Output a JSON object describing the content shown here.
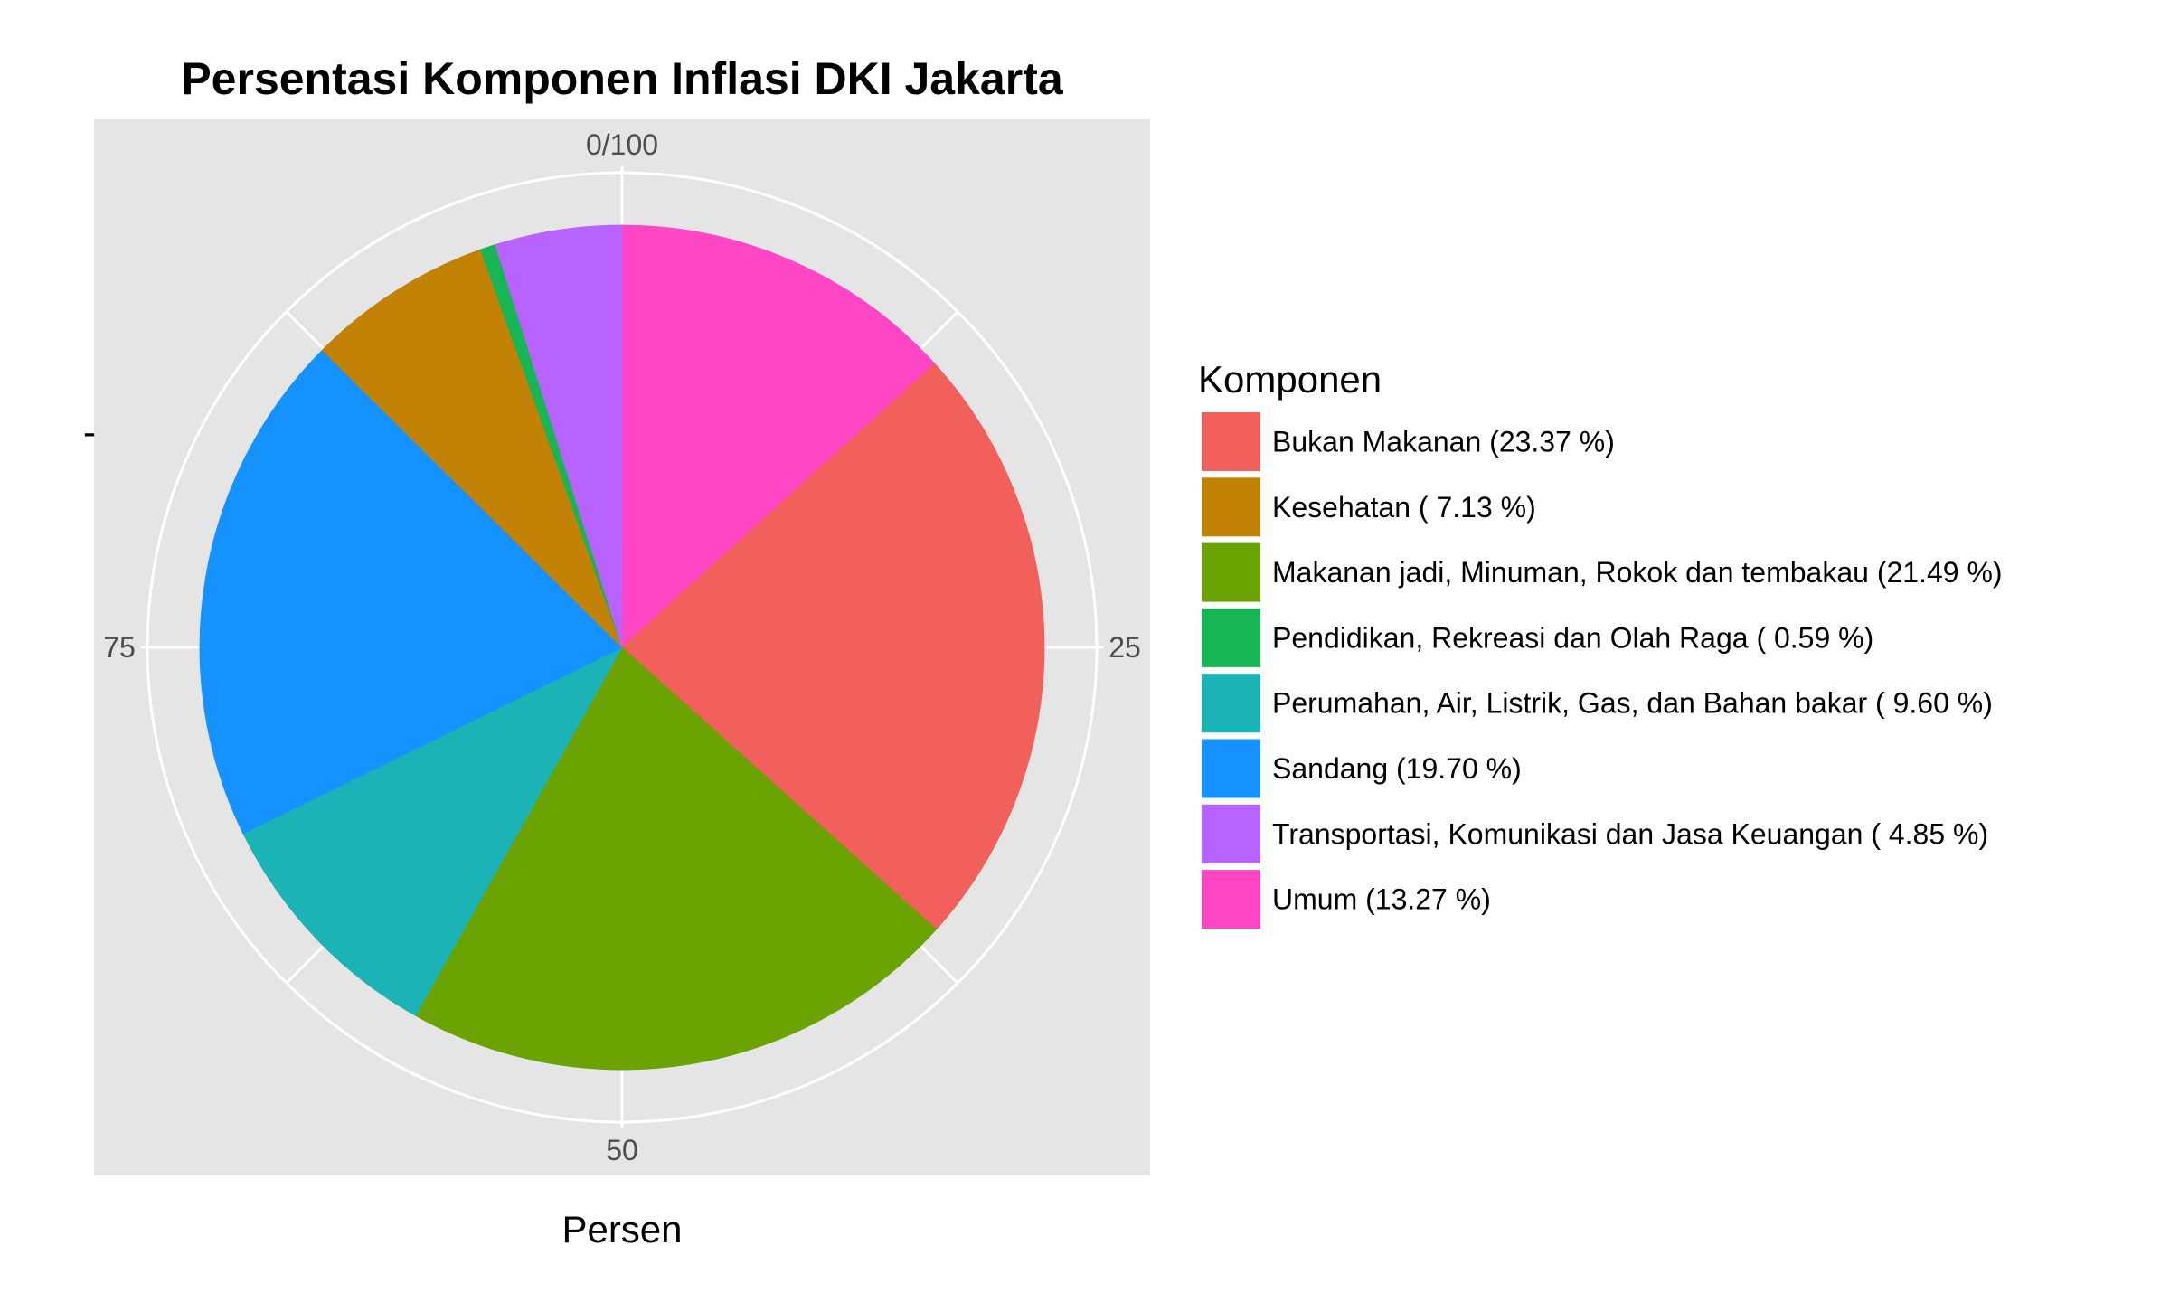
{
  "chart_data": {
    "type": "pie",
    "title": "Persentasi Komponen Inflasi DKI Jakarta",
    "xlabel": "Persen",
    "ylabel": "-",
    "legend_title": "Komponen",
    "legend_position": "right",
    "grid": true,
    "axis_range": [
      0,
      100
    ],
    "direction": "clockwise-from-top",
    "ticks": [
      {
        "value": 0,
        "label": "0/100"
      },
      {
        "value": 25,
        "label": "25"
      },
      {
        "value": 50,
        "label": "50"
      },
      {
        "value": 75,
        "label": "75"
      }
    ],
    "slices": [
      {
        "label": "Umum (13.27 %)",
        "value": 13.27,
        "color": "#FF46C5"
      },
      {
        "label": "Bukan Makanan (23.37 %)",
        "value": 23.37,
        "color": "#F2605C"
      },
      {
        "label": "Makanan jadi, Minuman, Rokok dan tembakau (21.49 %)",
        "value": 21.49,
        "color": "#6BA302"
      },
      {
        "label": "Perumahan, Air, Listrik, Gas, dan Bahan bakar ( 9.60 %)",
        "value": 9.6,
        "color": "#1CB3B6"
      },
      {
        "label": "Sandang (19.70 %)",
        "value": 19.7,
        "color": "#1592FF"
      },
      {
        "label": "Kesehatan ( 7.13 %)",
        "value": 7.13,
        "color": "#C18206"
      },
      {
        "label": "Pendidikan, Rekreasi dan Olah Raga ( 0.59 %)",
        "value": 0.59,
        "color": "#17B553"
      },
      {
        "label": "Transportasi, Komunikasi dan Jasa Keuangan ( 4.85 %)",
        "value": 4.85,
        "color": "#B863FF"
      }
    ],
    "legend_order": [
      "Bukan Makanan (23.37 %)",
      "Kesehatan ( 7.13 %)",
      "Makanan jadi, Minuman, Rokok dan tembakau (21.49 %)",
      "Pendidikan, Rekreasi dan Olah Raga ( 0.59 %)",
      "Perumahan, Air, Listrik, Gas, dan Bahan bakar ( 9.60 %)",
      "Sandang (19.70 %)",
      "Transportasi, Komunikasi dan Jasa Keuangan ( 4.85 %)",
      "Umum (13.27 %)"
    ]
  },
  "colors": {
    "panel_background": "#E5E5E5",
    "gridline": "#FFFFFF",
    "tick_text": "#4D4D4D"
  }
}
